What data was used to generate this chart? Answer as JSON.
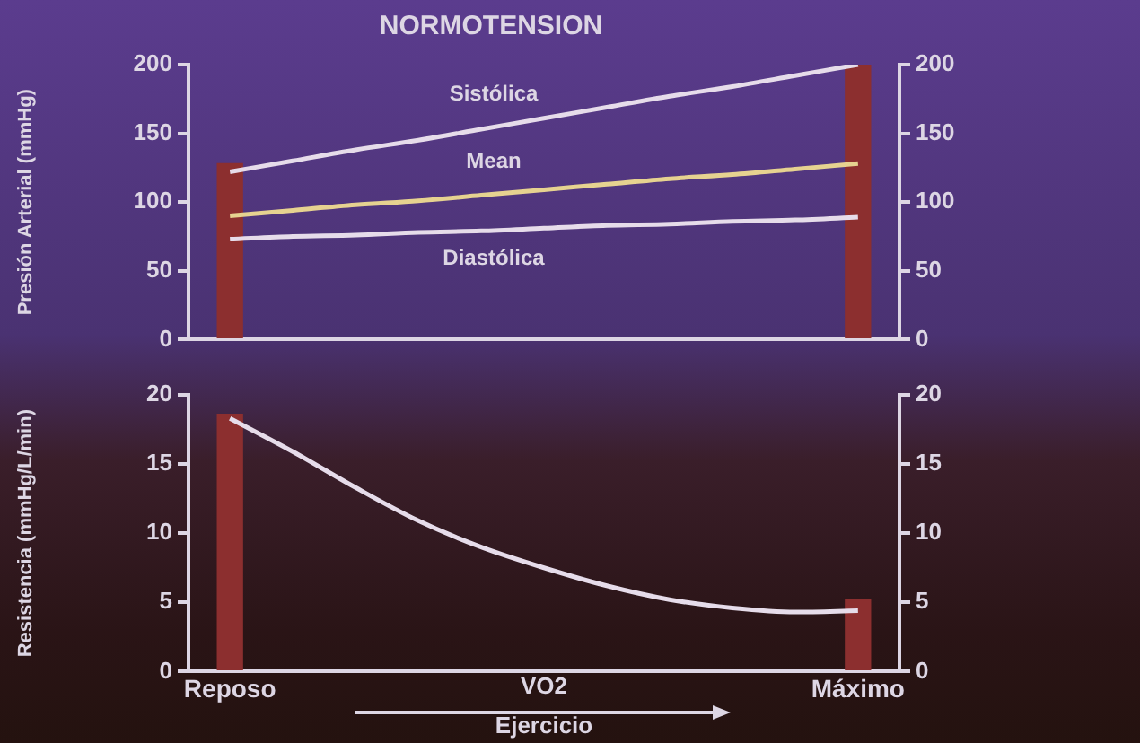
{
  "chart_data": [
    {
      "type": "line",
      "title": "NORMOTENSION",
      "ylabel": "Presión Arterial (mmHg)",
      "categories": [
        null,
        null,
        null,
        null,
        null,
        null,
        null,
        null,
        null,
        null,
        null
      ],
      "ylim": [
        0,
        200
      ],
      "yticks": [
        0,
        50,
        100,
        150,
        200
      ],
      "y2lim": [
        0,
        200
      ],
      "y2ticks": [
        0,
        50,
        100,
        150,
        200
      ],
      "tick_labels": "y",
      "grid": false,
      "legend": false,
      "marker": "none",
      "line_style": "solid",
      "series": [
        {
          "type": "bar",
          "color": "#8c2f2f",
          "values": [
            128,
            null,
            null,
            null,
            null,
            null,
            null,
            null,
            null,
            null,
            200
          ]
        },
        {
          "name": "Sistólica",
          "color": "#e6dcea",
          "values": [
            122,
            130,
            138,
            145,
            153,
            161,
            169,
            177,
            184,
            192,
            200
          ]
        },
        {
          "name": "Mean",
          "color": "#e6d290",
          "values": [
            90,
            94,
            98,
            101,
            105,
            109,
            113,
            117,
            120,
            124,
            128
          ]
        },
        {
          "name": "Diastólica",
          "color": "#e6dcea",
          "values": [
            73,
            75,
            76,
            78,
            79,
            81,
            83,
            84,
            86,
            87,
            89
          ]
        }
      ]
    },
    {
      "type": "line",
      "xlabel": "VO2",
      "ylabel": "Resistencia (mmHg/L/min)",
      "annotations": [
        "Ejercicio"
      ],
      "categories": [
        "Reposo",
        null,
        null,
        null,
        null,
        null,
        null,
        null,
        null,
        null,
        "Máximo"
      ],
      "ylim": [
        0,
        20
      ],
      "yticks": [
        0,
        5,
        10,
        15,
        20
      ],
      "y2lim": [
        0,
        20
      ],
      "y2ticks": [
        0,
        5,
        10,
        15,
        20
      ],
      "grid": false,
      "legend": false,
      "marker": "none",
      "line_style": "solid",
      "series": [
        {
          "type": "bar",
          "color": "#8c2f2f",
          "values": [
            18.6,
            null,
            null,
            null,
            null,
            null,
            null,
            null,
            null,
            null,
            5.2
          ]
        },
        {
          "color": "#e6dcea",
          "values": [
            18.3,
            15.9,
            13.3,
            10.9,
            9,
            7.5,
            6.2,
            5.2,
            4.6,
            4.3,
            4.4
          ]
        }
      ]
    }
  ]
}
